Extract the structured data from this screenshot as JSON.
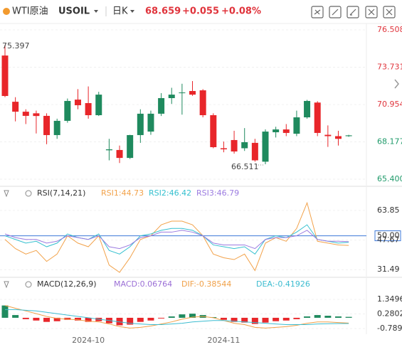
{
  "header": {
    "name": "WTI原油",
    "symbol": "USOIL",
    "period": "日K",
    "price": "68.659",
    "change": "+0.055",
    "change_pct": "+0.08%"
  },
  "chart_data": [
    {
      "type": "candlestick",
      "up_color": "#1f8a5e",
      "down_color": "#e8262a",
      "ylim": [
        65.08,
        76.88
      ],
      "yticks": [
        76.508,
        73.731,
        70.954,
        68.177,
        {
          "value": 65.4,
          "label": "65.400"
        }
      ],
      "ytick_colors": [
        "#e0343c",
        "#e0343c",
        "#e0343c",
        "#1f9a6a",
        "#1f9a6a"
      ],
      "high_label": 75.397,
      "low_label": 66.511,
      "open": [
        74.6,
        71.16,
        70.42,
        70.3,
        70.11,
        68.68,
        69.74,
        71.32,
        71.06,
        70.16,
        67.55,
        67.57,
        66.98,
        68.68,
        68.94,
        70.27,
        71.43,
        71.8,
        71.96,
        72.01,
        70.16,
        67.7,
        68.31,
        67.7,
        68.1,
        66.7,
        68.89,
        69.1,
        68.78,
        70.0,
        71.1,
        68.7,
        68.6,
        68.6
      ],
      "high": [
        75.397,
        71.5,
        70.6,
        70.5,
        70.3,
        69.9,
        71.4,
        72.1,
        72.3,
        71.9,
        68.4,
        67.9,
        68.7,
        70.6,
        70.5,
        71.8,
        72.2,
        72.5,
        72.7,
        72.1,
        70.3,
        68.2,
        69.0,
        69.2,
        68.4,
        69.1,
        69.3,
        69.5,
        70.5,
        71.3,
        71.2,
        69.4,
        69.0,
        68.7
      ],
      "low": [
        71.5,
        69.7,
        69.5,
        68.8,
        68.0,
        68.4,
        69.6,
        70.6,
        69.9,
        70.1,
        66.8,
        66.6,
        66.9,
        68.1,
        68.7,
        70.1,
        71.0,
        70.2,
        71.6,
        70.0,
        67.7,
        67.4,
        67.3,
        67.5,
        66.7,
        66.511,
        68.5,
        68.6,
        68.6,
        69.9,
        68.6,
        67.8,
        67.9,
        68.55
      ],
      "close": [
        71.59,
        70.42,
        70.11,
        70.1,
        68.68,
        69.74,
        71.22,
        70.9,
        70.16,
        71.69,
        67.62,
        66.98,
        68.68,
        70.27,
        70.27,
        71.43,
        71.69,
        71.85,
        71.69,
        70.16,
        67.78,
        67.62,
        67.46,
        68.15,
        66.8,
        68.94,
        69.1,
        68.84,
        70.0,
        71.22,
        68.84,
        68.6,
        68.4,
        68.659
      ]
    },
    {
      "type": "line",
      "title": "RSI(7,14,21)",
      "ylim": [
        27.3,
        68.1
      ],
      "yticks": [
        63.85,
        {
          "value": 50,
          "label": "50.00"
        },
        47.67,
        31.49
      ],
      "ref_line_color": "#3c78d8",
      "series": [
        {
          "name": "RSI1:44.73",
          "color": "#f2a24a",
          "values": [
            48,
            43,
            40,
            42,
            36,
            40,
            50,
            46,
            44,
            50,
            34,
            30,
            38,
            48,
            50,
            56,
            58,
            58,
            56,
            50,
            40,
            38,
            37,
            40,
            31,
            46,
            49,
            47,
            54,
            68,
            47,
            46,
            45,
            44.73
          ]
        },
        {
          "name": "RSI2:46.42",
          "color": "#35c0cf",
          "values": [
            50,
            48,
            46,
            47,
            44,
            46,
            51,
            49,
            48,
            51,
            42,
            40,
            44,
            50,
            51,
            53,
            54,
            54,
            53,
            50,
            45,
            44,
            43,
            44,
            40,
            48,
            50,
            49,
            52,
            56,
            48,
            47,
            46,
            46.42
          ]
        },
        {
          "name": "RSI3:46.79",
          "color": "#9b7be0",
          "values": [
            51,
            49,
            48,
            48,
            46,
            47,
            50,
            49,
            48,
            50,
            44,
            43,
            45,
            49,
            50,
            52,
            52,
            53,
            52,
            50,
            46,
            45,
            45,
            45,
            43,
            48,
            49,
            49,
            50,
            53,
            48,
            47,
            47,
            46.79
          ]
        }
      ]
    },
    {
      "type": "macd",
      "title": "MACD(12,26,9)",
      "ylim": [
        -1.2,
        1.92
      ],
      "yticks": [
        1.34964,
        0.28025,
        -0.78914
      ],
      "pos_color": "#1f8a5e",
      "neg_color": "#e8262a",
      "categories": [
        null,
        null,
        null,
        null,
        null,
        null,
        null,
        null,
        "2024-10",
        null,
        null,
        null,
        null,
        null,
        null,
        null,
        null,
        null,
        null,
        null,
        null,
        "2024-11",
        null,
        null,
        null,
        null,
        null,
        null,
        null,
        null,
        null,
        null,
        null,
        null
      ],
      "series": [
        {
          "name": "MACD:0.06764",
          "color": "#9b6fd6",
          "kind": "bar",
          "values": [
            0.9,
            0.2,
            -0.1,
            -0.2,
            -0.3,
            -0.25,
            -0.15,
            -0.2,
            -0.3,
            -0.25,
            -0.4,
            -0.55,
            -0.5,
            -0.3,
            -0.2,
            -0.05,
            0.1,
            0.25,
            0.3,
            0.2,
            0.05,
            -0.15,
            -0.3,
            -0.35,
            -0.45,
            -0.35,
            -0.25,
            -0.2,
            -0.1,
            0.1,
            0.2,
            0.15,
            0.1,
            0.06764
          ]
        },
        {
          "name": "DIF:-0.38544",
          "color": "#f0a048",
          "kind": "line",
          "values": [
            0.9,
            0.7,
            0.5,
            0.3,
            0.1,
            -0.05,
            -0.1,
            -0.15,
            -0.25,
            -0.3,
            -0.45,
            -0.65,
            -0.75,
            -0.7,
            -0.6,
            -0.45,
            -0.3,
            -0.1,
            0.05,
            0.1,
            0.0,
            -0.2,
            -0.4,
            -0.5,
            -0.7,
            -0.75,
            -0.7,
            -0.65,
            -0.55,
            -0.4,
            -0.3,
            -0.3,
            -0.35,
            -0.38544
          ]
        },
        {
          "name": "DEA:-0.41926",
          "color": "#3cbcd0",
          "kind": "line",
          "values": [
            0.6,
            0.6,
            0.55,
            0.5,
            0.4,
            0.3,
            0.2,
            0.1,
            0.0,
            -0.1,
            -0.2,
            -0.3,
            -0.4,
            -0.45,
            -0.5,
            -0.5,
            -0.45,
            -0.4,
            -0.3,
            -0.25,
            -0.2,
            -0.2,
            -0.25,
            -0.3,
            -0.35,
            -0.4,
            -0.45,
            -0.5,
            -0.5,
            -0.5,
            -0.45,
            -0.43,
            -0.42,
            -0.41926
          ]
        }
      ]
    }
  ]
}
